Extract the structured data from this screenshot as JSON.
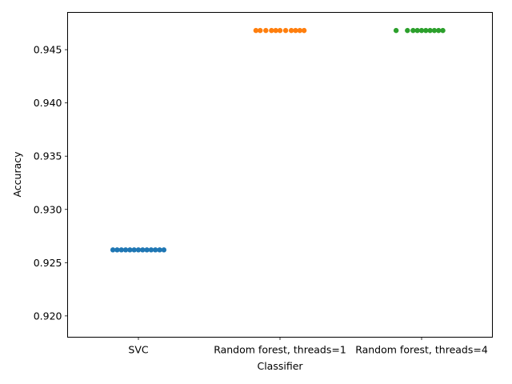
{
  "chart_data": {
    "type": "scatter",
    "xlabel": "Classifier",
    "ylabel": "Accuracy",
    "categories": [
      "SVC",
      "Random forest, threads=1",
      "Random forest, threads=4"
    ],
    "ylim": [
      0.918,
      0.9485
    ],
    "yticks": [
      0.92,
      0.925,
      0.93,
      0.935,
      0.94,
      0.945
    ],
    "ytick_labels": [
      "0.920",
      "0.925",
      "0.930",
      "0.935",
      "0.940",
      "0.945"
    ],
    "grid": false,
    "series": [
      {
        "category": "SVC",
        "color": "#1f77b4",
        "jitter": [
          -0.18,
          -0.15,
          -0.12,
          -0.09,
          -0.06,
          -0.03,
          0.0,
          0.03,
          0.06,
          0.09,
          0.12,
          0.15,
          0.18
        ],
        "values": [
          0.9262,
          0.9262,
          0.9262,
          0.9262,
          0.9262,
          0.9262,
          0.9262,
          0.9262,
          0.9262,
          0.9262,
          0.9262,
          0.9262,
          0.9262
        ]
      },
      {
        "category": "Random forest, threads=1",
        "color": "#ff7f0e",
        "jitter": [
          -0.17,
          -0.14,
          -0.1,
          -0.06,
          -0.03,
          0.0,
          0.04,
          0.08,
          0.11,
          0.14,
          0.17
        ],
        "values": [
          0.9468,
          0.9468,
          0.9468,
          0.9468,
          0.9468,
          0.9468,
          0.9468,
          0.9468,
          0.9468,
          0.9468,
          0.9468
        ]
      },
      {
        "category": "Random forest, threads=4",
        "color": "#2ca02c",
        "jitter": [
          -0.18,
          -0.1,
          -0.06,
          -0.03,
          0.0,
          0.03,
          0.06,
          0.09,
          0.12,
          0.15
        ],
        "values": [
          0.9468,
          0.9468,
          0.9468,
          0.9468,
          0.9468,
          0.9468,
          0.9468,
          0.9468,
          0.9468,
          0.9468
        ]
      }
    ]
  }
}
